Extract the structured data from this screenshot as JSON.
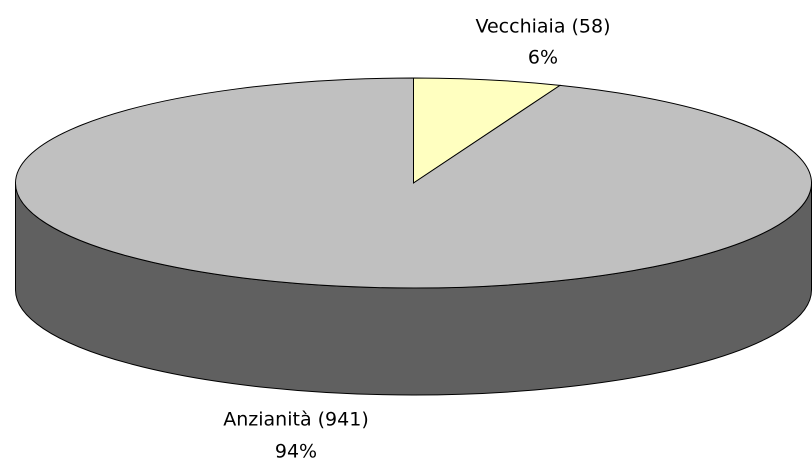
{
  "chart_data": {
    "type": "pie3d",
    "categories": [
      "Vecchiaia (58)",
      "Anzianità (941)"
    ],
    "values": [
      6,
      94
    ],
    "value_labels": [
      "6%",
      "94%"
    ],
    "colors": [
      "#ffffc0",
      "#c0c0c0"
    ]
  }
}
